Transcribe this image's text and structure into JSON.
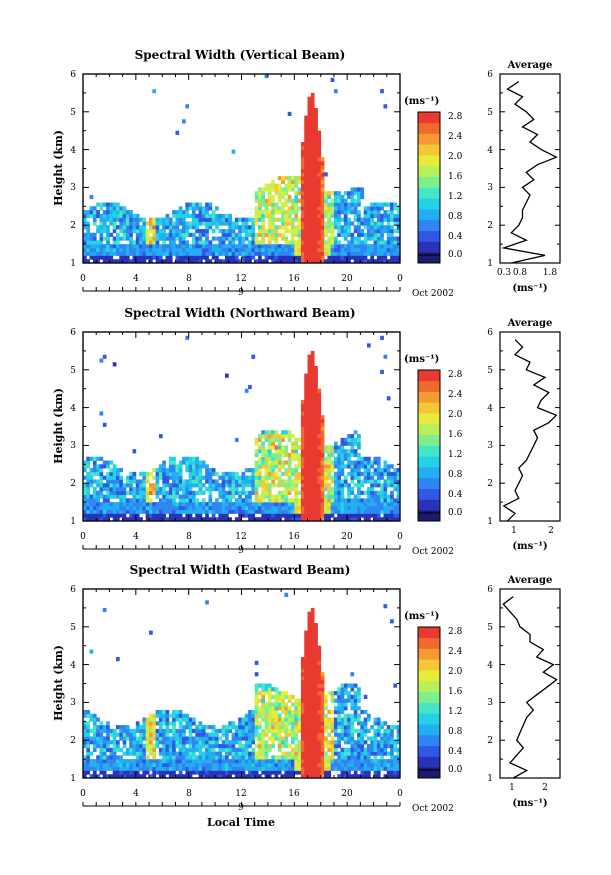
{
  "colormap": [
    "#1c1c6e",
    "#2a32b8",
    "#2f58e6",
    "#2f86f0",
    "#22aef0",
    "#24d2e6",
    "#45e6c8",
    "#7fef8e",
    "#b6f05a",
    "#e6ec3a",
    "#f5c636",
    "#f59a30",
    "#f06a30",
    "#e83a30"
  ],
  "date_label": "Oct 2002",
  "xlabel": "Local Time",
  "colorbar": {
    "unit_label": "(ms⁻¹)",
    "tick_labels": [
      "0.0",
      "0.4",
      "0.8",
      "1.2",
      "1.6",
      "2.0",
      "2.4",
      "2.8"
    ],
    "range": [
      0,
      3.0
    ]
  },
  "average_panel": {
    "title": "Average",
    "unit_label": "(ms⁻¹)"
  },
  "chart_data": [
    {
      "type": "heatmap",
      "title": "Spectral Width (Vertical Beam)",
      "ylabel": "Height (km)",
      "xlim": [
        0,
        24
      ],
      "ylim": [
        1,
        6
      ],
      "x_tick_labels": [
        "0",
        "4",
        "8",
        "12",
        "16",
        "20",
        "0"
      ],
      "y_tick_labels": [
        "1",
        "2",
        "3",
        "4",
        "5",
        "6"
      ],
      "day_label": "9",
      "value_unit": "ms⁻¹",
      "profile": {
        "title": "Average",
        "xlim": [
          0.3,
          1.9
        ],
        "x_tick_labels": [
          "0.3",
          "0.8",
          "1.8"
        ],
        "heights": [
          1.0,
          1.2,
          1.4,
          1.6,
          1.8,
          2.0,
          2.2,
          2.4,
          2.6,
          2.8,
          3.0,
          3.2,
          3.4,
          3.6,
          3.8,
          4.0,
          4.2,
          4.4,
          4.6,
          4.8,
          5.0,
          5.2,
          5.4,
          5.6,
          5.8
        ],
        "values": [
          0.6,
          1.5,
          0.4,
          1.0,
          0.6,
          0.8,
          0.9,
          0.9,
          1.0,
          1.1,
          0.9,
          1.2,
          1.0,
          1.3,
          1.8,
          1.4,
          1.1,
          1.3,
          0.9,
          1.2,
          1.0,
          0.7,
          0.9,
          0.5,
          0.8
        ]
      }
    },
    {
      "type": "heatmap",
      "title": "Spectral Width (Northward Beam)",
      "ylabel": "Height (km)",
      "xlim": [
        0,
        24
      ],
      "ylim": [
        1,
        6
      ],
      "x_tick_labels": [
        "0",
        "4",
        "8",
        "12",
        "16",
        "20",
        "0"
      ],
      "y_tick_labels": [
        "1",
        "2",
        "3",
        "4",
        "5",
        "6"
      ],
      "day_label": "9",
      "value_unit": "ms⁻¹",
      "profile": {
        "title": "Average",
        "xlim": [
          0.6,
          2.2
        ],
        "x_tick_labels": [
          "1",
          "2"
        ],
        "heights": [
          1.0,
          1.2,
          1.4,
          1.6,
          1.8,
          2.0,
          2.2,
          2.4,
          2.6,
          2.8,
          3.0,
          3.2,
          3.4,
          3.6,
          3.8,
          4.0,
          4.2,
          4.4,
          4.6,
          4.8,
          5.0,
          5.2,
          5.4,
          5.6,
          5.8
        ],
        "values": [
          0.8,
          1.0,
          0.7,
          1.1,
          1.0,
          1.1,
          1.2,
          1.1,
          1.3,
          1.4,
          1.5,
          1.6,
          1.5,
          1.9,
          2.1,
          1.6,
          1.7,
          1.9,
          1.5,
          1.8,
          1.3,
          1.4,
          1.0,
          1.2,
          1.0
        ]
      }
    },
    {
      "type": "heatmap",
      "title": "Spectral Width (Eastward Beam)",
      "ylabel": "Height (km)",
      "xlim": [
        0,
        24
      ],
      "ylim": [
        1,
        6
      ],
      "x_tick_labels": [
        "0",
        "4",
        "8",
        "12",
        "16",
        "20",
        "0"
      ],
      "y_tick_labels": [
        "1",
        "2",
        "3",
        "4",
        "5",
        "6"
      ],
      "day_label": "9",
      "value_unit": "ms⁻¹",
      "profile": {
        "title": "Average",
        "xlim": [
          0.5,
          2.3
        ],
        "x_tick_labels": [
          "1",
          "2"
        ],
        "heights": [
          1.0,
          1.2,
          1.4,
          1.6,
          1.8,
          2.0,
          2.2,
          2.4,
          2.6,
          2.8,
          3.0,
          3.2,
          3.4,
          3.6,
          3.8,
          4.0,
          4.2,
          4.4,
          4.6,
          4.8,
          5.0,
          5.2,
          5.4,
          5.6,
          5.8
        ],
        "values": [
          0.9,
          1.3,
          0.8,
          1.0,
          1.2,
          1.0,
          1.1,
          1.2,
          1.3,
          1.5,
          1.3,
          1.6,
          1.9,
          2.2,
          1.8,
          2.1,
          1.6,
          1.8,
          1.4,
          1.4,
          1.1,
          1.0,
          0.8,
          0.6,
          0.9
        ]
      }
    }
  ]
}
